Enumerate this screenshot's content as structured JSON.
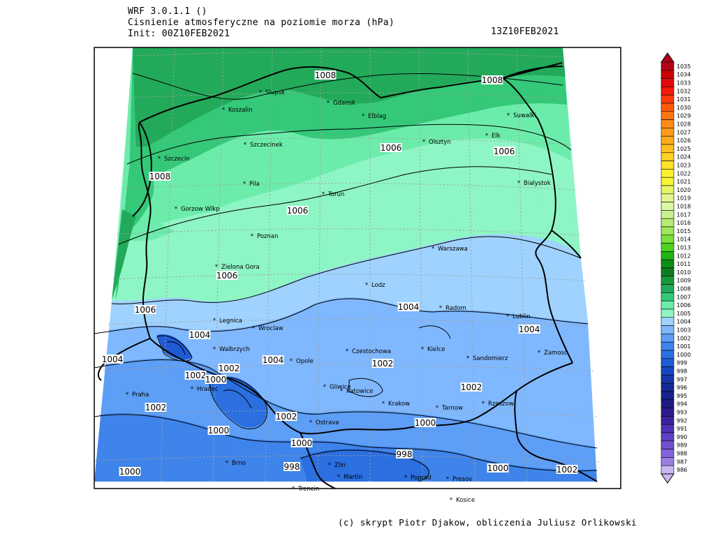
{
  "header": {
    "model": "WRF 3.0.1.1 ()",
    "field": "Cisnienie atmosferyczne na poziomie morza (hPa)",
    "init": "Init: 00Z10FEB2021",
    "valid": "13Z10FEB2021"
  },
  "credit": "(c) skrypt Piotr Djakow, obliczenia Juliusz Orlikowski",
  "colorbar": {
    "levels": [
      1035,
      1034,
      1033,
      1032,
      1031,
      1030,
      1029,
      1028,
      1027,
      1026,
      1025,
      1024,
      1023,
      1022,
      1021,
      1020,
      1019,
      1018,
      1017,
      1016,
      1015,
      1014,
      1013,
      1012,
      1011,
      1010,
      1009,
      1008,
      1007,
      1006,
      1005,
      1004,
      1003,
      1002,
      1001,
      1000,
      999,
      998,
      997,
      996,
      995,
      994,
      993,
      992,
      991,
      990,
      989,
      988,
      987,
      986
    ],
    "colors": [
      "#b5001a",
      "#cc0000",
      "#e20b0b",
      "#f21a0a",
      "#ff3a0a",
      "#ff5a0a",
      "#ff7514",
      "#ff8c1a",
      "#ff9b1a",
      "#ffad1a",
      "#ffbf1f",
      "#ffd025",
      "#ffe02a",
      "#fff02e",
      "#f4f535",
      "#e6f56a",
      "#e2f58f",
      "#dcf7a5",
      "#c9f28f",
      "#b6ec73",
      "#9de85a",
      "#7ae03d",
      "#4ed320",
      "#22b414",
      "#0d8e14",
      "#127a20",
      "#19993a",
      "#22aa5a",
      "#34c878",
      "#6cecab",
      "#8ef5c4",
      "#9fd2ff",
      "#7fb8ff",
      "#5d9ef6",
      "#3f84ea",
      "#2b6fe0",
      "#1f5bd4",
      "#1946c0",
      "#1636a8",
      "#142a98",
      "#17228a",
      "#201b82",
      "#2e1c8e",
      "#3c22a0",
      "#4e30b4",
      "#6040c4",
      "#7050d0",
      "#8364dc",
      "#9a7ee6",
      "#cab8f4"
    ]
  },
  "map": {
    "cities": [
      {
        "name": "Slupsk"
      },
      {
        "name": "Gdansk"
      },
      {
        "name": "Koszalin"
      },
      {
        "name": "Elblag"
      },
      {
        "name": "Suwalki"
      },
      {
        "name": "Olsztyn"
      },
      {
        "name": "Elk"
      },
      {
        "name": "Szczecinek"
      },
      {
        "name": "Szczecin"
      },
      {
        "name": "Pila"
      },
      {
        "name": "Torun"
      },
      {
        "name": "Bialystok"
      },
      {
        "name": "Gorzow Wlkp"
      },
      {
        "name": "Poznan"
      },
      {
        "name": "Warszawa"
      },
      {
        "name": "Zielona Gora"
      },
      {
        "name": "Lodz"
      },
      {
        "name": "Radom"
      },
      {
        "name": "Lublin"
      },
      {
        "name": "Legnica"
      },
      {
        "name": "Wroclaw"
      },
      {
        "name": "Kielce"
      },
      {
        "name": "Walbrzych"
      },
      {
        "name": "Opole"
      },
      {
        "name": "Czestochowa"
      },
      {
        "name": "Sandomierz"
      },
      {
        "name": "Zamosc"
      },
      {
        "name": "Hradec"
      },
      {
        "name": "Gliwice"
      },
      {
        "name": "Katowice"
      },
      {
        "name": "Praha"
      },
      {
        "name": "Krakow"
      },
      {
        "name": "Tarnow"
      },
      {
        "name": "Rzeszow"
      },
      {
        "name": "Ostrava"
      },
      {
        "name": "Brno"
      },
      {
        "name": "Zlin"
      },
      {
        "name": "Poprad"
      },
      {
        "name": "Martin"
      },
      {
        "name": "Presov"
      },
      {
        "name": "Trencin"
      },
      {
        "name": "Kosice"
      }
    ],
    "contour_labels": [
      {
        "text": "1008"
      },
      {
        "text": "1008"
      },
      {
        "text": "1008"
      },
      {
        "text": "1006"
      },
      {
        "text": "1006"
      },
      {
        "text": "1006"
      },
      {
        "text": "1006"
      },
      {
        "text": "1006"
      },
      {
        "text": "1004"
      },
      {
        "text": "1004"
      },
      {
        "text": "1004"
      },
      {
        "text": "1004"
      },
      {
        "text": "1004"
      },
      {
        "text": "1002"
      },
      {
        "text": "1002"
      },
      {
        "text": "1002"
      },
      {
        "text": "1002"
      },
      {
        "text": "1002"
      },
      {
        "text": "1002"
      },
      {
        "text": "1002"
      },
      {
        "text": "1000"
      },
      {
        "text": "1000"
      },
      {
        "text": "1000"
      },
      {
        "text": "1000"
      },
      {
        "text": "1000"
      },
      {
        "text": "1000"
      },
      {
        "text": "998"
      },
      {
        "text": "998"
      }
    ]
  }
}
